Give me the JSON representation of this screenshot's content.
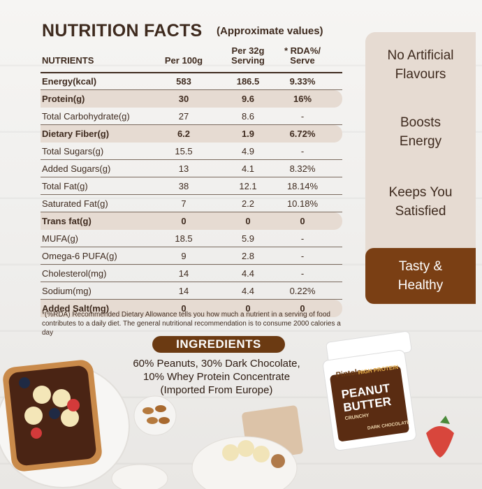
{
  "title": "NUTRITION FACTS",
  "subtitle": "(Approximate values)",
  "headers": {
    "nutrients": "NUTRIENTS",
    "per100": "Per 100g",
    "per32_line1": "Per 32g",
    "per32_line2": "Serving",
    "rda_line1": "* RDA%/",
    "rda_line2": "Serve"
  },
  "rows": [
    {
      "name": "Energy(kcal)",
      "per100": "583",
      "per32": "186.5",
      "rda": "9.33%"
    },
    {
      "name": "Protein(g)",
      "per100": "30",
      "per32": "9.6",
      "rda": "16%"
    },
    {
      "name": "Total Carbohydrate(g)",
      "per100": "27",
      "per32": "8.6",
      "rda": "-"
    },
    {
      "name": "Dietary Fiber(g)",
      "per100": "6.2",
      "per32": "1.9",
      "rda": "6.72%"
    },
    {
      "name": "Total Sugars(g)",
      "per100": "15.5",
      "per32": "4.9",
      "rda": "-"
    },
    {
      "name": "Added Sugars(g)",
      "per100": "13",
      "per32": "4.1",
      "rda": "8.32%"
    },
    {
      "name": "Total Fat(g)",
      "per100": "38",
      "per32": "12.1",
      "rda": "18.14%"
    },
    {
      "name": "Saturated Fat(g)",
      "per100": "7",
      "per32": "2.2",
      "rda": "10.18%"
    },
    {
      "name": "Trans fat(g)",
      "per100": "0",
      "per32": "0",
      "rda": "0"
    },
    {
      "name": "MUFA(g)",
      "per100": "18.5",
      "per32": "5.9",
      "rda": "-"
    },
    {
      "name": "Omega-6 PUFA(g)",
      "per100": "9",
      "per32": "2.8",
      "rda": "-"
    },
    {
      "name": "Cholesterol(mg)",
      "per100": "14",
      "per32": "4.4",
      "rda": "-"
    },
    {
      "name": "Sodium(mg)",
      "per100": "14",
      "per32": "4.4",
      "rda": "0.22%"
    },
    {
      "name": "Added Salt(mg)",
      "per100": "0",
      "per32": "0",
      "rda": "0"
    }
  ],
  "footnote_line1": "*(%RDA) Recommended Dietary Allowance tells you how much a nutrient in a serving of food",
  "footnote_line2": "contributes to a daily diet. The general nutritional recommendation is to consume 2000 calories a day",
  "features": [
    {
      "line1": "No Artificial",
      "line2": "Flavours"
    },
    {
      "line1": "Boosts",
      "line2": "Energy"
    },
    {
      "line1": "Keeps You",
      "line2": "Satisfied"
    },
    {
      "line1": "Tasty &",
      "line2": "Healthy"
    }
  ],
  "ingredients": {
    "heading": "INGREDIENTS",
    "line1": "60% Peanuts, 30% Dark Chocolate,",
    "line2": "10% Whey Protein Concentrate",
    "line3": "(Imported From Europe)"
  },
  "jar": {
    "brand": "Pintola",
    "band": "HIGH PROTEIN",
    "product_line1": "PEANUT",
    "product_line2": "BUTTER",
    "variant": "CRUNCHY",
    "flavor": "DARK CHOCOLATE"
  },
  "colors": {
    "brown": "#6b3a12",
    "accent": "#7a3f14",
    "panel": "#e6dbd2",
    "text": "#3e2a1e"
  }
}
